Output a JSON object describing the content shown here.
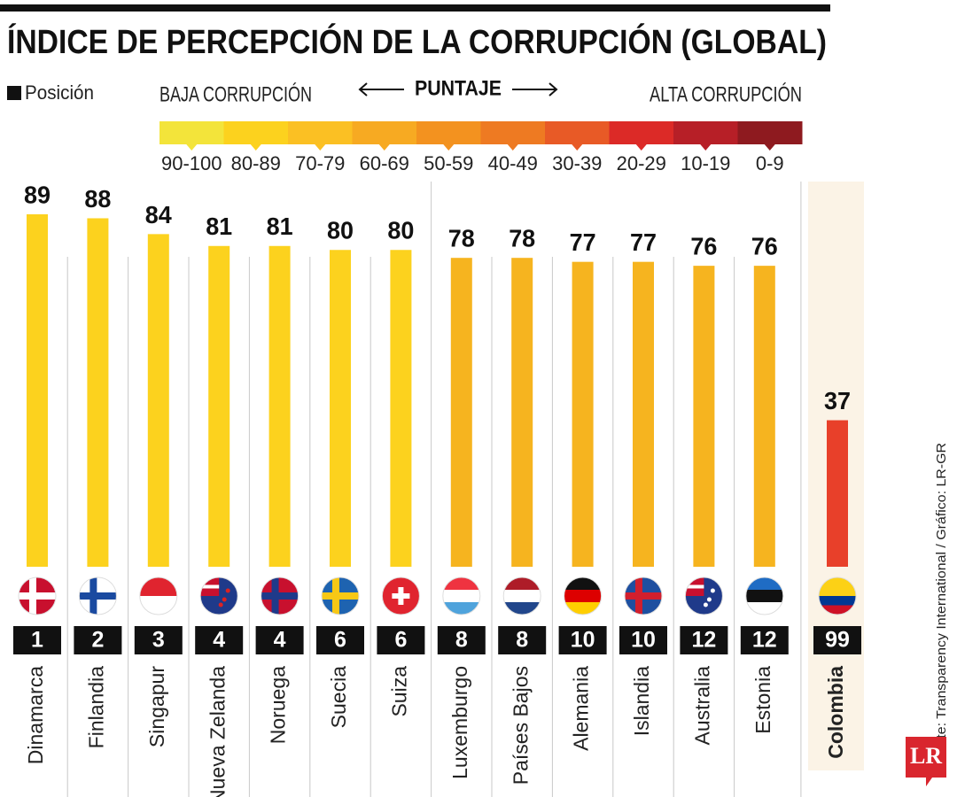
{
  "chart_data": {
    "type": "bar",
    "title": "ÍNDICE DE PERCEPCIÓN DE LA CORRUPCIÓN (GLOBAL)",
    "categories": [
      "Dinamarca",
      "Finlandia",
      "Singapur",
      "Nueva Zelanda",
      "Noruega",
      "Suecia",
      "Suiza",
      "Luxemburgo",
      "Países Bajos",
      "Alemania",
      "Islandia",
      "Australia",
      "Estonia",
      "Colombia"
    ],
    "values": [
      89,
      88,
      84,
      81,
      81,
      80,
      80,
      78,
      78,
      77,
      77,
      76,
      76,
      37
    ],
    "positions": [
      1,
      2,
      3,
      4,
      4,
      6,
      6,
      8,
      8,
      10,
      10,
      12,
      12,
      99
    ],
    "colors": [
      "#fcd21e",
      "#fcd21e",
      "#fcd21e",
      "#fcd21e",
      "#fcd21e",
      "#fcd21e",
      "#fcd21e",
      "#f6b41f",
      "#f6b41f",
      "#f6b41f",
      "#f6b41f",
      "#f6b41f",
      "#f6b41f",
      "#e8402a"
    ],
    "legend": {
      "position_label": "Posición",
      "low_label": "BAJA CORRUPCIÓN",
      "score_label": "PUNTAJE",
      "high_label": "ALTA CORRUPCIÓN",
      "scale_labels": [
        "90-100",
        "80-89",
        "70-79",
        "60-69",
        "50-59",
        "40-49",
        "30-39",
        "20-29",
        "10-19",
        "0-9"
      ],
      "scale_colors": [
        "#f3e43a",
        "#fcd21e",
        "#fbc023",
        "#f7aa22",
        "#f3921f",
        "#ee7a22",
        "#e85a26",
        "#dc2a27",
        "#b71f27",
        "#8e1a1f"
      ]
    }
  },
  "source": "Fuente: Transparency International / Gráfico: LR-GR",
  "logo": "LR"
}
